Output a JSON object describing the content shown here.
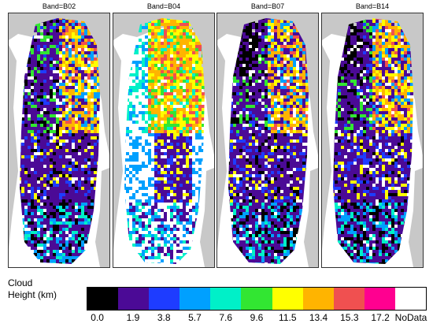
{
  "panels": [
    {
      "title": "Band=B02",
      "scheme": "B02"
    },
    {
      "title": "Band=B04",
      "scheme": "B04"
    },
    {
      "title": "Band=B07",
      "scheme": "B07"
    },
    {
      "title": "Band=B14",
      "scheme": "B14"
    }
  ],
  "legend": {
    "title_line1": "Cloud",
    "title_line2": "Height (km)",
    "classes": [
      {
        "label": "0.0",
        "color": "#000000"
      },
      {
        "label": "1.9",
        "color": "#4b0a96"
      },
      {
        "label": "3.8",
        "color": "#1e3cff"
      },
      {
        "label": "5.7",
        "color": "#00a0ff"
      },
      {
        "label": "7.6",
        "color": "#00f0c8"
      },
      {
        "label": "9.6",
        "color": "#32e632"
      },
      {
        "label": "11.5",
        "color": "#ffff00"
      },
      {
        "label": "13.4",
        "color": "#ffb400"
      },
      {
        "label": "15.3",
        "color": "#f05050"
      },
      {
        "label": "17.2",
        "color": "#ff0090"
      },
      {
        "label": "NoData",
        "color": "#ffffff"
      }
    ]
  },
  "colors": {
    "land": "#c8c8c8",
    "frame": "#333333"
  }
}
